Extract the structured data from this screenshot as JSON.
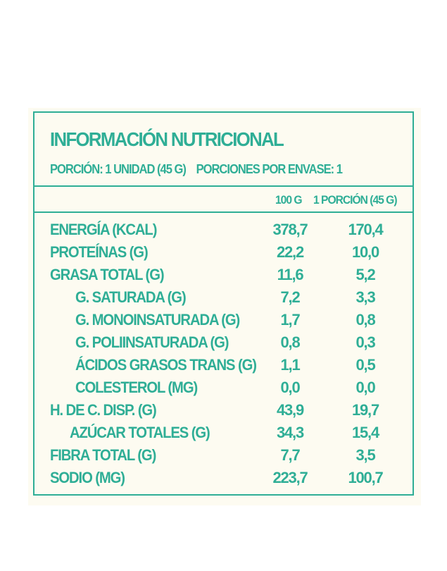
{
  "label": {
    "title": "INFORMACIÓN NUTRICIONAL",
    "portion": "PORCIÓN: 1 UNIDAD (45 G)",
    "portions_per_pack": "PORCIONES POR ENVASE: 1",
    "col_100g": "100 G",
    "col_portion": "1 PORCIÓN (45 G)",
    "colors": {
      "accent": "#2fae96",
      "panel": "#fdfbf1"
    }
  },
  "rows": [
    {
      "label": "ENERGÍA (KCAL)",
      "per100": "378,7",
      "perPortion": "170,4"
    },
    {
      "label": "PROTEÍNAS (G)",
      "per100": "22,2",
      "perPortion": "10,0"
    },
    {
      "label": "GRASA TOTAL (G)",
      "per100": "11,6",
      "perPortion": "5,2"
    },
    {
      "label": "G. SATURADA (G)",
      "per100": "7,2",
      "perPortion": "3,3"
    },
    {
      "label": "G. MONOINSATURADA (G)",
      "per100": "1,7",
      "perPortion": "0,8"
    },
    {
      "label": "G. POLIINSATURADA (G)",
      "per100": "0,8",
      "perPortion": "0,3"
    },
    {
      "label": "ÁCIDOS GRASOS TRANS (G)",
      "per100": "1,1",
      "perPortion": "0,5"
    },
    {
      "label": "COLESTEROL (MG)",
      "per100": "0,0",
      "perPortion": "0,0"
    },
    {
      "label": "H. DE C. DISP. (G)",
      "per100": "43,9",
      "perPortion": "19,7"
    },
    {
      "label": "AZÚCAR TOTALES (G)",
      "per100": "34,3",
      "perPortion": "15,4"
    },
    {
      "label": "FIBRA TOTAL (G)",
      "per100": "7,7",
      "perPortion": "3,5"
    },
    {
      "label": "SODIO (MG)",
      "per100": "223,7",
      "perPortion": "100,7"
    }
  ]
}
